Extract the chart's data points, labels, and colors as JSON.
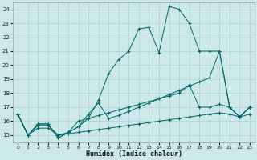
{
  "xlabel": "Humidex (Indice chaleur)",
  "bg_color": "#cce8e8",
  "grid_color": "#b0d0d0",
  "line_color": "#006868",
  "xlim": [
    -0.5,
    23.5
  ],
  "ylim": [
    14.5,
    24.5
  ],
  "xticks": [
    0,
    1,
    2,
    3,
    4,
    5,
    6,
    7,
    8,
    9,
    10,
    11,
    12,
    13,
    14,
    15,
    16,
    17,
    18,
    19,
    20,
    21,
    22,
    23
  ],
  "yticks": [
    15,
    16,
    17,
    18,
    19,
    20,
    21,
    22,
    23,
    24
  ],
  "series": [
    {
      "x": [
        0,
        1,
        2,
        3,
        4,
        5,
        6,
        7,
        8,
        9,
        10,
        11,
        12,
        13,
        14,
        15,
        16,
        17,
        18,
        19,
        20,
        21,
        22,
        23
      ],
      "y": [
        16.5,
        15.0,
        15.8,
        15.8,
        14.8,
        15.2,
        15.6,
        16.2,
        17.5,
        19.4,
        20.4,
        21.0,
        22.6,
        22.7,
        20.9,
        24.2,
        24.0,
        23.0,
        21.0,
        21.0,
        21.0,
        17.0,
        16.3,
        17.0
      ]
    },
    {
      "x": [
        0,
        1,
        2,
        3,
        4,
        5,
        6,
        7,
        8,
        9,
        10,
        11,
        12,
        13,
        14,
        15,
        16,
        17,
        18,
        19,
        20,
        21,
        22,
        23
      ],
      "y": [
        16.5,
        15.0,
        15.8,
        15.8,
        14.8,
        15.2,
        15.6,
        16.5,
        17.3,
        16.2,
        16.4,
        16.7,
        17.0,
        17.3,
        17.6,
        17.9,
        18.2,
        18.5,
        18.8,
        19.1,
        21.0,
        17.0,
        16.3,
        17.0
      ]
    },
    {
      "x": [
        0,
        1,
        2,
        3,
        4,
        5,
        6,
        7,
        8,
        9,
        10,
        11,
        12,
        13,
        14,
        15,
        16,
        17,
        18,
        19,
        20,
        21,
        22,
        23
      ],
      "y": [
        16.5,
        15.0,
        15.7,
        15.7,
        15.0,
        15.2,
        16.0,
        16.2,
        16.4,
        16.6,
        16.8,
        17.0,
        17.2,
        17.4,
        17.6,
        17.8,
        18.0,
        18.6,
        17.0,
        17.0,
        17.2,
        17.0,
        16.3,
        17.0
      ]
    },
    {
      "x": [
        0,
        1,
        2,
        3,
        4,
        5,
        6,
        7,
        8,
        9,
        10,
        11,
        12,
        13,
        14,
        15,
        16,
        17,
        18,
        19,
        20,
        21,
        22,
        23
      ],
      "y": [
        16.5,
        15.0,
        15.5,
        15.5,
        15.0,
        15.1,
        15.2,
        15.3,
        15.4,
        15.5,
        15.6,
        15.7,
        15.8,
        15.9,
        16.0,
        16.1,
        16.2,
        16.3,
        16.4,
        16.5,
        16.6,
        16.5,
        16.3,
        16.5
      ]
    }
  ]
}
